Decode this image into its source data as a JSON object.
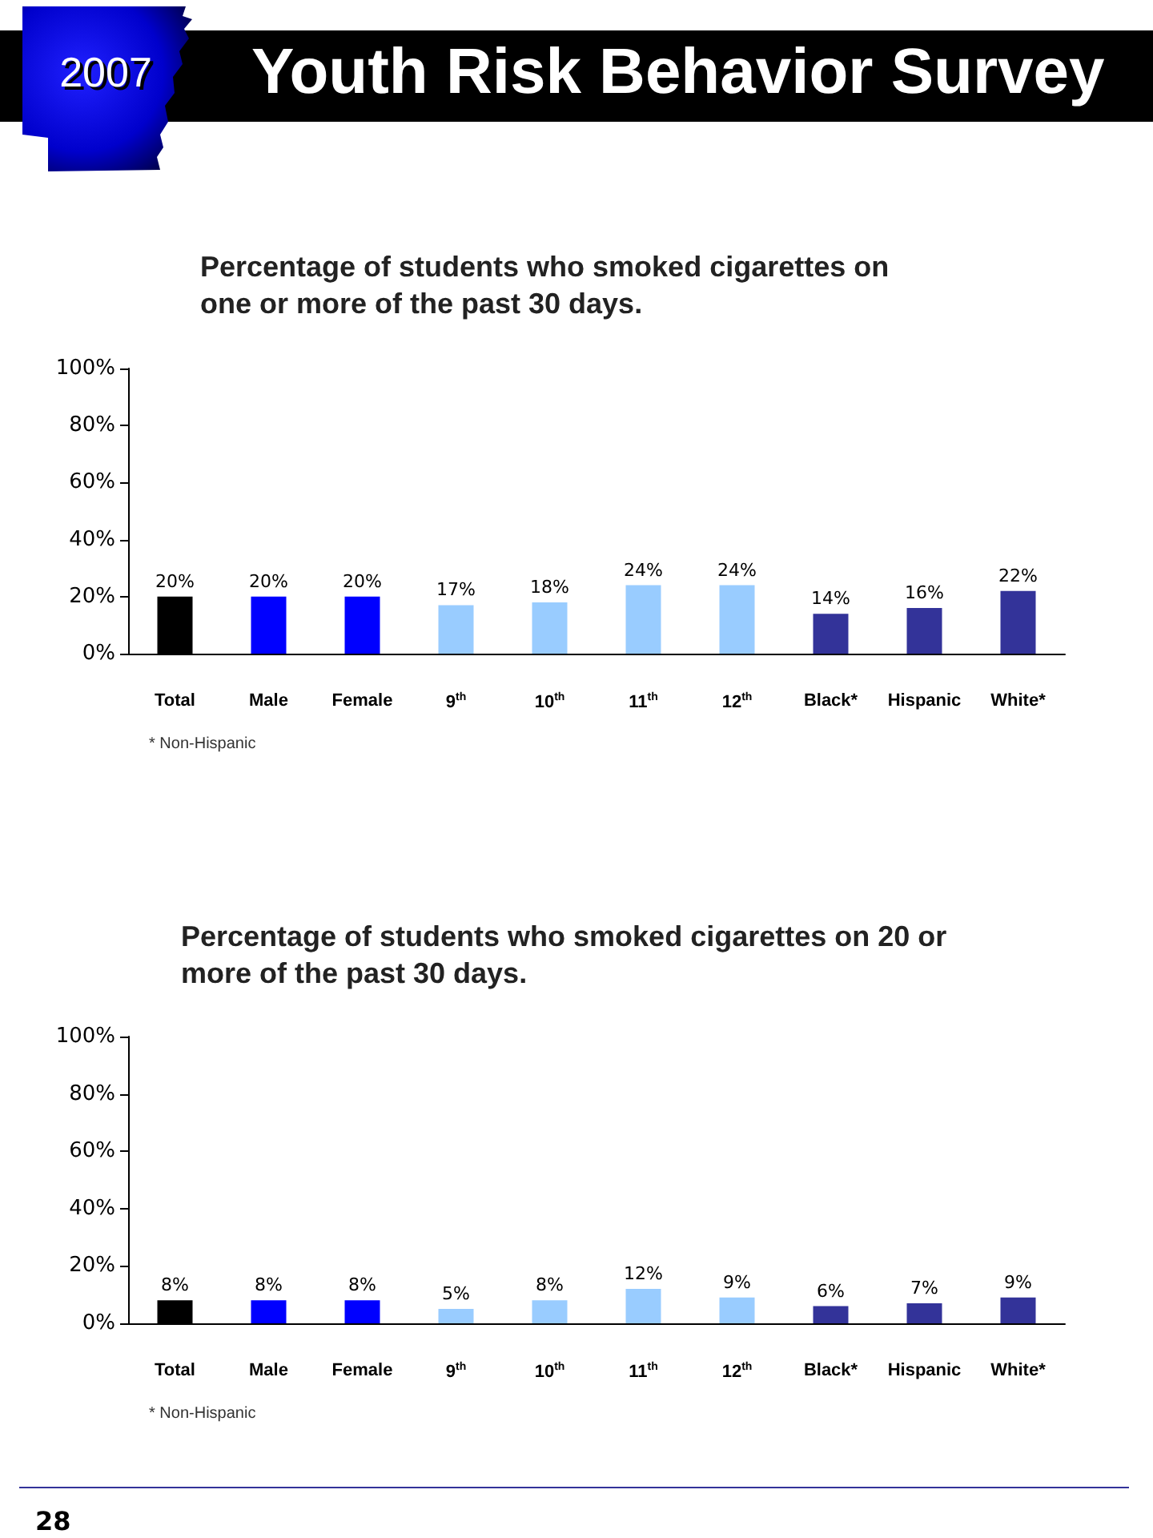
{
  "chart_data": [
    {
      "type": "bar",
      "title": "Percentage of students who smoked cigarettes on one or more of the past 30 days.",
      "categories": [
        "Total",
        "Male",
        "Female",
        "9$^{th}$",
        "10$^{th}$",
        "11$^{th}$",
        "12$^{th}$",
        "Black*",
        "Hispanic",
        "White*"
      ],
      "values": [
        20,
        20,
        20,
        17,
        18,
        24,
        24,
        14,
        16,
        22
      ],
      "colors": [
        "#000000",
        "#0000ff",
        "#0000ff",
        "#99ccff",
        "#99ccff",
        "#99ccff",
        "#99ccff",
        "#333399",
        "#333399",
        "#333399"
      ],
      "value_labels": [
        "20%",
        "20%",
        "20%",
        "17%",
        "18%",
        "24%",
        "24%",
        "14%",
        "16%",
        "22%"
      ],
      "ylim": [
        0,
        100
      ],
      "yticks": [
        {
          "value": 0,
          "label": "0%"
        },
        {
          "value": 20,
          "label": "20%"
        },
        {
          "value": 40,
          "label": "40%"
        },
        {
          "value": 60,
          "label": "60%"
        },
        {
          "value": 80,
          "label": "80%"
        },
        {
          "value": 100,
          "label": "100%"
        }
      ],
      "grid": false,
      "annotations": [
        "2007",
        "Youth Risk Behavior Survey",
        "* Non-Hispanic"
      ]
    },
    {
      "type": "bar",
      "title": "Percentage of students who smoked cigarettes on 20 or more of the past 30 days.",
      "categories": [
        "Total",
        "Male",
        "Female",
        "9$^{th}$",
        "10$^{th}$",
        "11$^{th}$",
        "12$^{th}$",
        "Black*",
        "Hispanic",
        "White*"
      ],
      "values": [
        8,
        8,
        8,
        5,
        8,
        12,
        9,
        6,
        7,
        9
      ],
      "colors": [
        "#000000",
        "#0000ff",
        "#0000ff",
        "#99ccff",
        "#99ccff",
        "#99ccff",
        "#99ccff",
        "#333399",
        "#333399",
        "#333399"
      ],
      "value_labels": [
        "8%",
        "8%",
        "8%",
        "5%",
        "8%",
        "12%",
        "9%",
        "6%",
        "7%",
        "9%"
      ],
      "ylim": [
        0,
        100
      ],
      "yticks": [
        {
          "value": 0,
          "label": "0%"
        },
        {
          "value": 20,
          "label": "20%"
        },
        {
          "value": 40,
          "label": "40%"
        },
        {
          "value": 60,
          "label": "60%"
        },
        {
          "value": 80,
          "label": "80%"
        },
        {
          "value": 100,
          "label": "100%"
        }
      ],
      "grid": false,
      "annotations": [
        "* Non-Hispanic",
        "28"
      ]
    }
  ]
}
